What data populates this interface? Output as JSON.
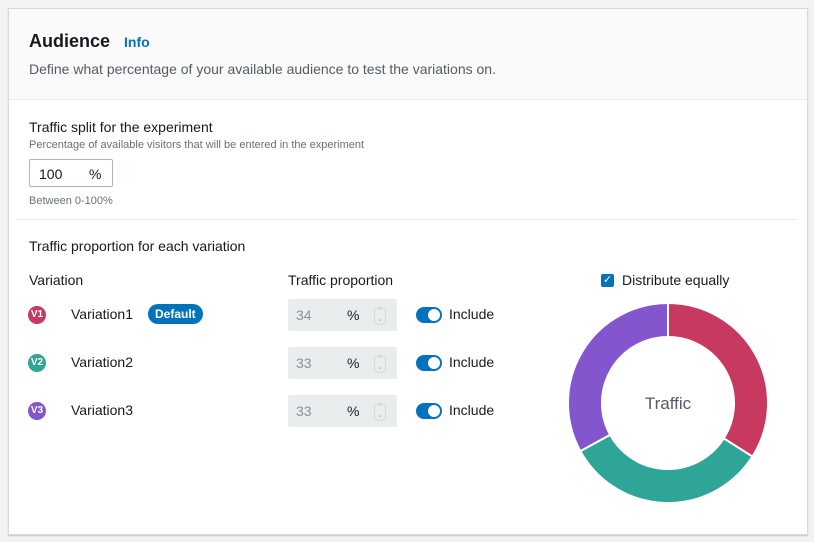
{
  "header": {
    "title": "Audience",
    "info": "Info",
    "description": "Define what percentage of your available audience to test the variations on."
  },
  "split": {
    "label": "Traffic split for the experiment",
    "hint": "Percentage of available visitors that will be entered in the experiment",
    "value": "100",
    "unit": "%",
    "constraint": "Between 0-100%"
  },
  "proportion": {
    "label": "Traffic proportion for each variation",
    "col_variation": "Variation",
    "col_traffic": "Traffic proportion",
    "distribute_label": "Distribute equally",
    "distribute_checked": true,
    "variations": [
      {
        "badge": "V1",
        "name": "Variation1",
        "default_label": "Default",
        "value": "34",
        "unit": "%",
        "include": "Include",
        "enabled": true,
        "color": "#c7395f"
      },
      {
        "badge": "V2",
        "name": "Variation2",
        "value": "33",
        "unit": "%",
        "include": "Include",
        "enabled": true,
        "color": "#2ea597"
      },
      {
        "badge": "V3",
        "name": "Variation3",
        "value": "33",
        "unit": "%",
        "include": "Include",
        "enabled": true,
        "color": "#8456ce"
      }
    ]
  },
  "chart_data": {
    "type": "pie",
    "donut": true,
    "center_label": "Traffic",
    "categories": [
      "Variation1",
      "Variation2",
      "Variation3"
    ],
    "values": [
      34,
      33,
      33
    ],
    "colors": [
      "#c7395f",
      "#2ea597",
      "#8456ce"
    ]
  }
}
